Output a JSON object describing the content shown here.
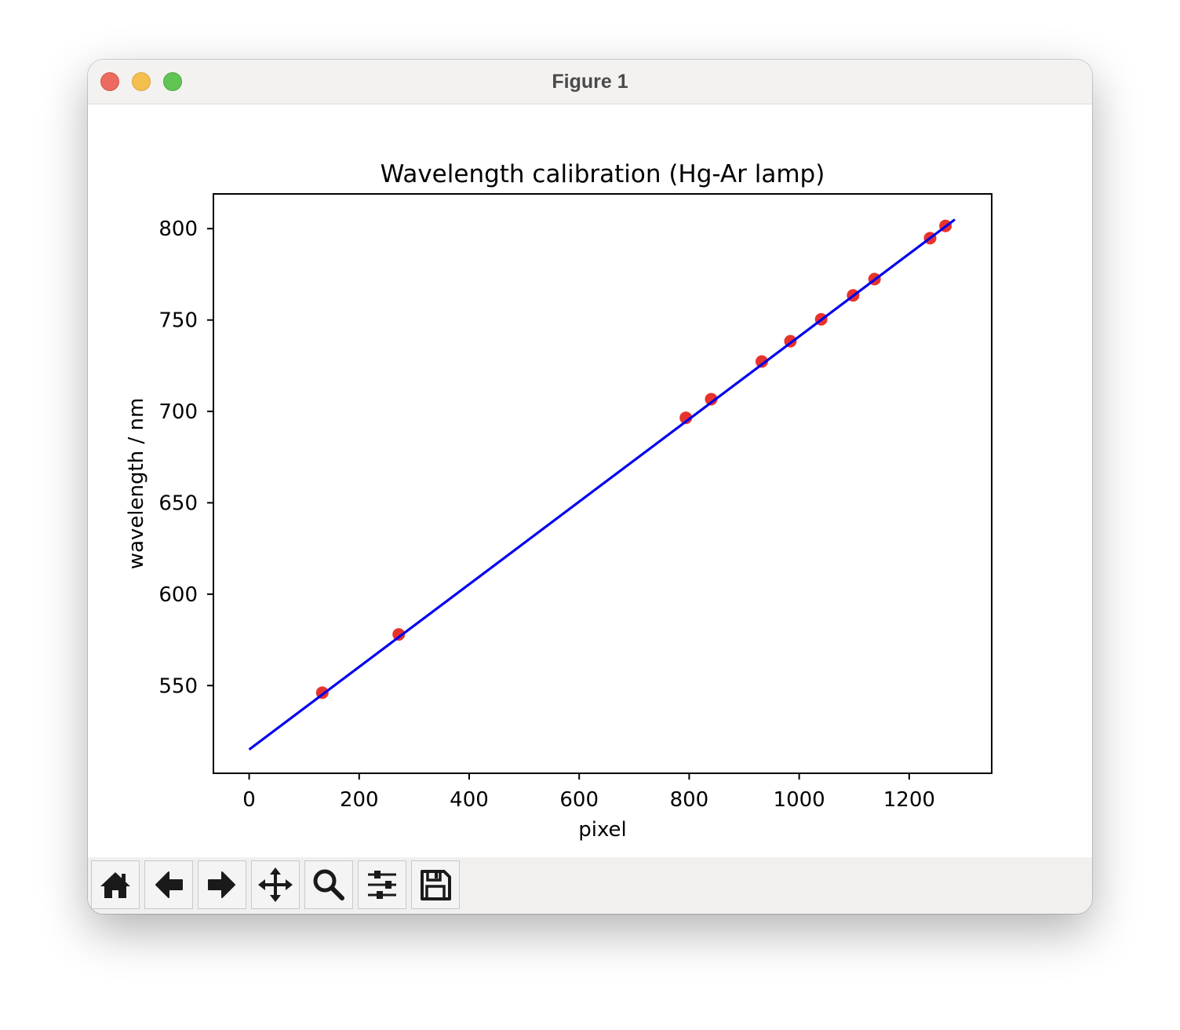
{
  "window": {
    "title": "Figure 1"
  },
  "toolbar": {
    "items": [
      {
        "name": "home-button",
        "icon": "home-icon"
      },
      {
        "name": "back-button",
        "icon": "arrow-left-icon"
      },
      {
        "name": "forward-button",
        "icon": "arrow-right-icon"
      },
      {
        "name": "pan-button",
        "icon": "move-icon"
      },
      {
        "name": "zoom-button",
        "icon": "magnifier-icon"
      },
      {
        "name": "configure-subplots-button",
        "icon": "sliders-icon"
      },
      {
        "name": "save-button",
        "icon": "floppy-disk-icon"
      }
    ]
  },
  "chart_data": {
    "type": "scatter",
    "title": "Wavelength calibration (Hg-Ar lamp)",
    "xlabel": "pixel",
    "ylabel": "wavelength / nm",
    "xlim": [
      -65,
      1350
    ],
    "ylim": [
      502,
      819
    ],
    "xticks": [
      0,
      200,
      400,
      600,
      800,
      1000,
      1200
    ],
    "yticks": [
      550,
      600,
      650,
      700,
      750,
      800
    ],
    "grid": false,
    "legend": "none",
    "points": {
      "color": "#e8332c",
      "x": [
        133,
        272,
        794,
        840,
        932,
        984,
        1040,
        1098,
        1137,
        1238,
        1266
      ],
      "y": [
        546.1,
        578.0,
        696.5,
        706.7,
        727.3,
        738.4,
        750.4,
        763.5,
        772.4,
        794.8,
        801.5
      ]
    },
    "fit_line": {
      "color": "#0000ee",
      "x": [
        0,
        1283
      ],
      "y": [
        515.0,
        805.0
      ]
    }
  }
}
